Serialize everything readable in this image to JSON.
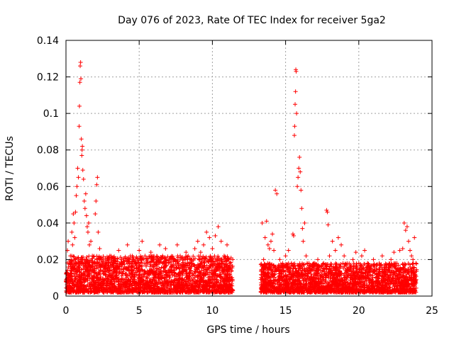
{
  "chart_data": {
    "type": "scatter",
    "title": "Day 076 of 2023, Rate Of TEC Index for receiver 5ga2",
    "xlabel": "GPS time / hours",
    "ylabel": "ROTI / TECUs",
    "xlim": [
      0,
      25
    ],
    "ylim": [
      0,
      0.14
    ],
    "xticks": [
      0,
      5,
      10,
      15,
      20,
      25
    ],
    "yticks": [
      0,
      0.02,
      0.04,
      0.06,
      0.08,
      0.1,
      0.12,
      0.14
    ],
    "xtick_labels": [
      "0",
      "5",
      "10",
      "15",
      "20",
      "25"
    ],
    "ytick_labels": [
      "0",
      "0.02",
      "0.04",
      "0.06",
      "0.08",
      "0.1",
      "0.12",
      "0.14"
    ],
    "grid": true,
    "marker": "+",
    "color": "#ff0000",
    "series": [
      {
        "points": [
          [
            0.05,
            0.012
          ],
          [
            0.1,
            0.025
          ],
          [
            0.15,
            0.03
          ],
          [
            0.2,
            0.018
          ],
          [
            0.25,
            0.008
          ],
          [
            0.3,
            0.022
          ],
          [
            0.35,
            0.015
          ],
          [
            0.4,
            0.035
          ],
          [
            0.45,
            0.028
          ],
          [
            0.5,
            0.045
          ],
          [
            0.55,
            0.04
          ],
          [
            0.6,
            0.032
          ],
          [
            0.65,
            0.046
          ],
          [
            0.7,
            0.055
          ],
          [
            0.75,
            0.06
          ],
          [
            0.8,
            0.07
          ],
          [
            0.85,
            0.065
          ],
          [
            0.9,
            0.093
          ],
          [
            0.92,
            0.104
          ],
          [
            0.95,
            0.117
          ],
          [
            0.97,
            0.126
          ],
          [
            1.0,
            0.128
          ],
          [
            1.02,
            0.119
          ],
          [
            1.05,
            0.086
          ],
          [
            1.08,
            0.077
          ],
          [
            1.1,
            0.08
          ],
          [
            1.12,
            0.082
          ],
          [
            1.15,
            0.069
          ],
          [
            1.2,
            0.064
          ],
          [
            1.25,
            0.052
          ],
          [
            1.3,
            0.048
          ],
          [
            1.35,
            0.056
          ],
          [
            1.4,
            0.044
          ],
          [
            1.45,
            0.038
          ],
          [
            1.5,
            0.035
          ],
          [
            1.55,
            0.04
          ],
          [
            1.6,
            0.028
          ],
          [
            1.7,
            0.03
          ],
          [
            1.8,
            0.022
          ],
          [
            1.9,
            0.018
          ],
          [
            2.0,
            0.045
          ],
          [
            2.05,
            0.052
          ],
          [
            2.1,
            0.061
          ],
          [
            2.15,
            0.065
          ],
          [
            2.2,
            0.035
          ],
          [
            2.3,
            0.026
          ],
          [
            2.4,
            0.02
          ],
          [
            2.6,
            0.016
          ],
          [
            2.8,
            0.014
          ],
          [
            3.0,
            0.022
          ],
          [
            3.2,
            0.012
          ],
          [
            3.4,
            0.018
          ],
          [
            3.6,
            0.025
          ],
          [
            3.8,
            0.02
          ],
          [
            4.0,
            0.016
          ],
          [
            4.2,
            0.028
          ],
          [
            4.4,
            0.022
          ],
          [
            4.6,
            0.014
          ],
          [
            4.8,
            0.018
          ],
          [
            5.0,
            0.025
          ],
          [
            5.2,
            0.03
          ],
          [
            5.4,
            0.022
          ],
          [
            5.6,
            0.018
          ],
          [
            5.8,
            0.024
          ],
          [
            6.0,
            0.02
          ],
          [
            6.2,
            0.015
          ],
          [
            6.4,
            0.028
          ],
          [
            6.6,
            0.022
          ],
          [
            6.8,
            0.026
          ],
          [
            7.0,
            0.018
          ],
          [
            7.2,
            0.014
          ],
          [
            7.4,
            0.02
          ],
          [
            7.6,
            0.028
          ],
          [
            7.8,
            0.022
          ],
          [
            8.0,
            0.016
          ],
          [
            8.2,
            0.024
          ],
          [
            8.4,
            0.018
          ],
          [
            8.6,
            0.02
          ],
          [
            8.8,
            0.026
          ],
          [
            9.0,
            0.03
          ],
          [
            9.2,
            0.024
          ],
          [
            9.4,
            0.028
          ],
          [
            9.6,
            0.035
          ],
          [
            9.8,
            0.032
          ],
          [
            10.0,
            0.026
          ],
          [
            10.2,
            0.033
          ],
          [
            10.4,
            0.038
          ],
          [
            10.6,
            0.03
          ],
          [
            10.8,
            0.022
          ],
          [
            11.0,
            0.028
          ],
          [
            11.1,
            0.02
          ],
          [
            11.2,
            0.018
          ],
          [
            11.3,
            0.014
          ],
          [
            13.4,
            0.04
          ],
          [
            13.5,
            0.02
          ],
          [
            13.6,
            0.032
          ],
          [
            13.7,
            0.041
          ],
          [
            13.8,
            0.028
          ],
          [
            13.9,
            0.026
          ],
          [
            14.0,
            0.03
          ],
          [
            14.1,
            0.034
          ],
          [
            14.2,
            0.025
          ],
          [
            14.3,
            0.058
          ],
          [
            14.4,
            0.056
          ],
          [
            14.6,
            0.02
          ],
          [
            14.8,
            0.018
          ],
          [
            15.0,
            0.022
          ],
          [
            15.1,
            0.016
          ],
          [
            15.2,
            0.025
          ],
          [
            15.3,
            0.014
          ],
          [
            15.4,
            0.018
          ],
          [
            15.5,
            0.034
          ],
          [
            15.55,
            0.033
          ],
          [
            15.6,
            0.088
          ],
          [
            15.62,
            0.093
          ],
          [
            15.65,
            0.105
          ],
          [
            15.68,
            0.112
          ],
          [
            15.7,
            0.124
          ],
          [
            15.72,
            0.123
          ],
          [
            15.75,
            0.1
          ],
          [
            15.8,
            0.06
          ],
          [
            15.85,
            0.065
          ],
          [
            15.9,
            0.07
          ],
          [
            15.95,
            0.076
          ],
          [
            16.0,
            0.068
          ],
          [
            16.05,
            0.058
          ],
          [
            16.1,
            0.048
          ],
          [
            16.15,
            0.037
          ],
          [
            16.2,
            0.03
          ],
          [
            16.3,
            0.04
          ],
          [
            16.4,
            0.022
          ],
          [
            16.6,
            0.018
          ],
          [
            16.8,
            0.016
          ],
          [
            17.0,
            0.014
          ],
          [
            17.2,
            0.02
          ],
          [
            17.4,
            0.016
          ],
          [
            17.6,
            0.018
          ],
          [
            17.8,
            0.047
          ],
          [
            17.85,
            0.046
          ],
          [
            17.9,
            0.039
          ],
          [
            18.0,
            0.022
          ],
          [
            18.2,
            0.03
          ],
          [
            18.4,
            0.025
          ],
          [
            18.6,
            0.032
          ],
          [
            18.8,
            0.028
          ],
          [
            19.0,
            0.022
          ],
          [
            19.2,
            0.018
          ],
          [
            19.4,
            0.016
          ],
          [
            19.6,
            0.02
          ],
          [
            19.8,
            0.024
          ],
          [
            20.0,
            0.018
          ],
          [
            20.2,
            0.022
          ],
          [
            20.4,
            0.025
          ],
          [
            20.6,
            0.018
          ],
          [
            20.8,
            0.016
          ],
          [
            21.0,
            0.02
          ],
          [
            21.2,
            0.015
          ],
          [
            21.4,
            0.018
          ],
          [
            21.6,
            0.022
          ],
          [
            21.8,
            0.016
          ],
          [
            22.0,
            0.014
          ],
          [
            22.2,
            0.02
          ],
          [
            22.4,
            0.024
          ],
          [
            22.6,
            0.018
          ],
          [
            22.8,
            0.025
          ],
          [
            23.0,
            0.026
          ],
          [
            23.1,
            0.04
          ],
          [
            23.2,
            0.036
          ],
          [
            23.3,
            0.038
          ],
          [
            23.4,
            0.03
          ],
          [
            23.5,
            0.025
          ],
          [
            23.6,
            0.022
          ],
          [
            23.7,
            0.02
          ],
          [
            23.8,
            0.032
          ],
          [
            23.9,
            0.018
          ]
        ]
      }
    ],
    "dense_band": [
      {
        "x_start": 0.0,
        "x_end": 11.4,
        "y_min": 0.002,
        "y_max": 0.022
      },
      {
        "x_start": 13.3,
        "x_end": 23.95,
        "y_min": 0.002,
        "y_max": 0.018
      }
    ]
  }
}
